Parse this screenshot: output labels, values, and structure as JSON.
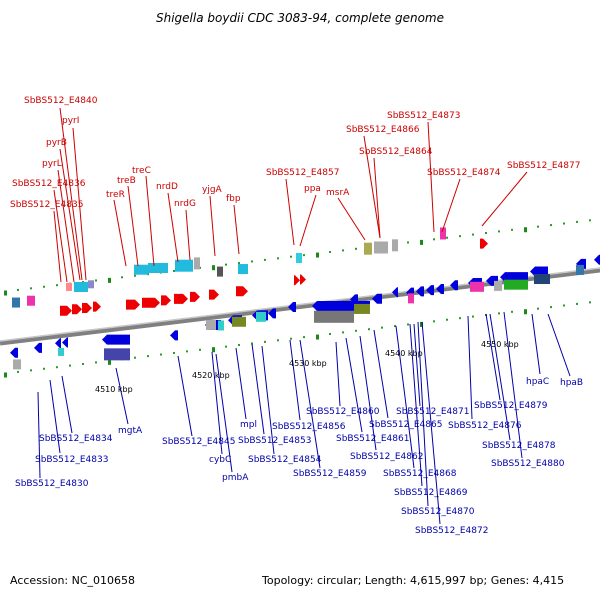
{
  "title": "Shigella boydii CDC 3083-94, complete genome",
  "footer": {
    "accession": "Accession: NC_010658",
    "summary": "Topology: circular; Length: 4,615,997 bp; Genes: 4,415"
  },
  "scale_labels": [
    "4510 kbp",
    "4520 kbp",
    "4530 kbp",
    "4540 kbp",
    "4550 kbp"
  ],
  "top_labels": [
    "SbBS512_E4840",
    "pyrI",
    "pyrB",
    "pyrL",
    "SbBS512_E4836",
    "SbBS512_E4835",
    "treR",
    "treB",
    "treC",
    "nrdD",
    "nrdG",
    "yjgA",
    "fbp",
    "SbBS512_E4857",
    "ppa",
    "msrA",
    "SbBS512_E4864",
    "SbBS512_E4866",
    "SbBS512_E4873",
    "SbBS512_E4874",
    "SbBS512_E4877"
  ],
  "bottom_labels": [
    "SbBS512_E4830",
    "SbBS512_E4833",
    "SbBS512_E4834",
    "mgtA",
    "SbBS512_E4845",
    "cybC",
    "pmbA",
    "mpl",
    "SbBS512_E4853",
    "SbBS512_E4854",
    "SbBS512_E4856",
    "SbBS512_E4859",
    "SbBS512_E4860",
    "SbBS512_E4861",
    "SbBS512_E4862",
    "SbBS512_E4865",
    "SbBS512_E4868",
    "SbBS512_E4869",
    "SbBS512_E4870",
    "SbBS512_E4871",
    "SbBS512_E4872",
    "SbBS512_E4876",
    "SbBS512_E4878",
    "SbBS512_E4879",
    "SbBS512_E4880",
    "hpaC",
    "hpaB"
  ],
  "colors": {
    "forward_strand": "#ee0000",
    "reverse_strand": "#0000dd",
    "backbone": "#808080",
    "label_top": "#cc0000",
    "label_bottom": "#0000aa"
  }
}
